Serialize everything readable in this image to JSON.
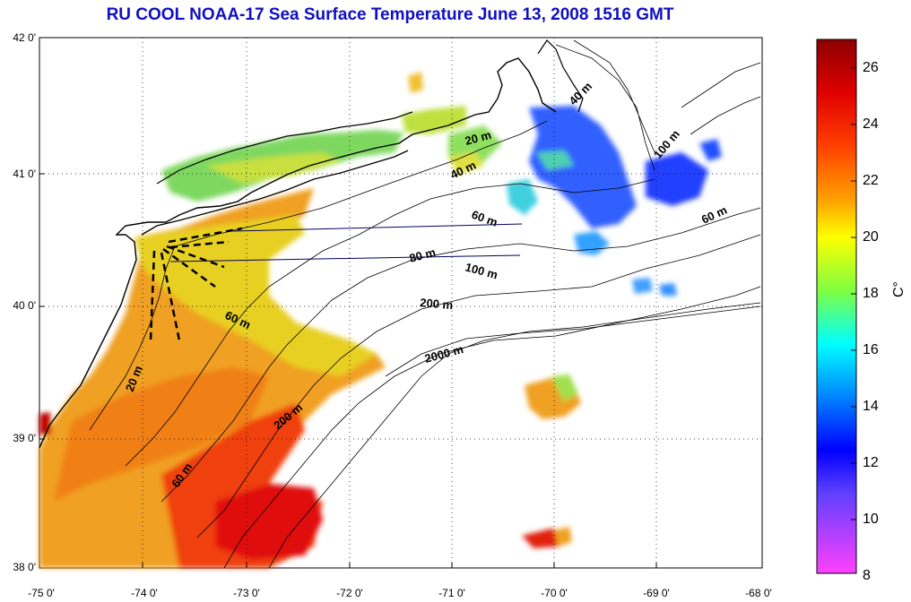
{
  "title": "RU COOL  NOAA-17 Sea Surface Temperature June 13, 2008 1516 GMT",
  "axes": {
    "lat_labels": [
      "42 0'",
      "41 0'",
      "40 0'",
      "39 0'",
      "38 0'"
    ],
    "lon_labels": [
      "-75 0'",
      "-74 0'",
      "-73 0'",
      "-72 0'",
      "-71 0'",
      "-70 0'",
      "-69 0'",
      "-68 0'"
    ]
  },
  "isobath_labels": {
    "m20_a": "20 m",
    "m20_b": "20 m",
    "m40_a": "40 m",
    "m40_b": "40 m",
    "m60_a": "60 m",
    "m60_b": "60 m",
    "m60_c": "60 m",
    "m60_d": "60 m",
    "m80": "80 m",
    "m100_a": "100 m",
    "m100_b": "100 m",
    "m200_a": "200 m",
    "m200_b": "200 m",
    "m2000": "2000 m"
  },
  "colorbar": {
    "unit": "C°",
    "ticks": [
      "26",
      "24",
      "22",
      "20",
      "18",
      "16",
      "14",
      "12",
      "10",
      "8"
    ],
    "range": [
      8,
      27
    ],
    "colors": [
      "#8b0000",
      "#ff2000",
      "#ff8000",
      "#ffff00",
      "#80ff40",
      "#00ffff",
      "#0080ff",
      "#0000ff",
      "#8040ff",
      "#ff40ff"
    ]
  }
}
